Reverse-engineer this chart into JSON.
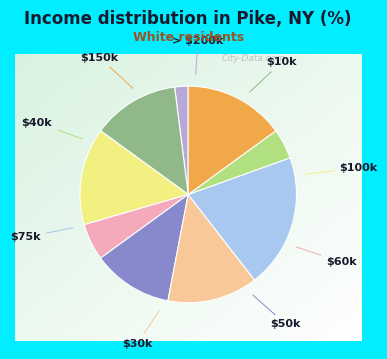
{
  "title": "Income distribution in Pike, NY (%)",
  "subtitle": "White residents",
  "title_color": "#1a1a2e",
  "subtitle_color": "#a05020",
  "bg_outer": "#00eeff",
  "labels": [
    "> $200k",
    "$10k",
    "$100k",
    "$60k",
    "$50k",
    "$30k",
    "$75k",
    "$40k",
    "$150k"
  ],
  "sizes": [
    2.0,
    13.0,
    14.5,
    5.5,
    12.0,
    13.5,
    20.0,
    4.5,
    15.0
  ],
  "colors": [
    "#b8a8d8",
    "#90b888",
    "#f2f080",
    "#f4aabb",
    "#8888cc",
    "#f8c898",
    "#a8c8f0",
    "#b0e080",
    "#f0a848"
  ],
  "startangle": 90,
  "label_fontsize": 8,
  "watermark": "City-Data.com"
}
